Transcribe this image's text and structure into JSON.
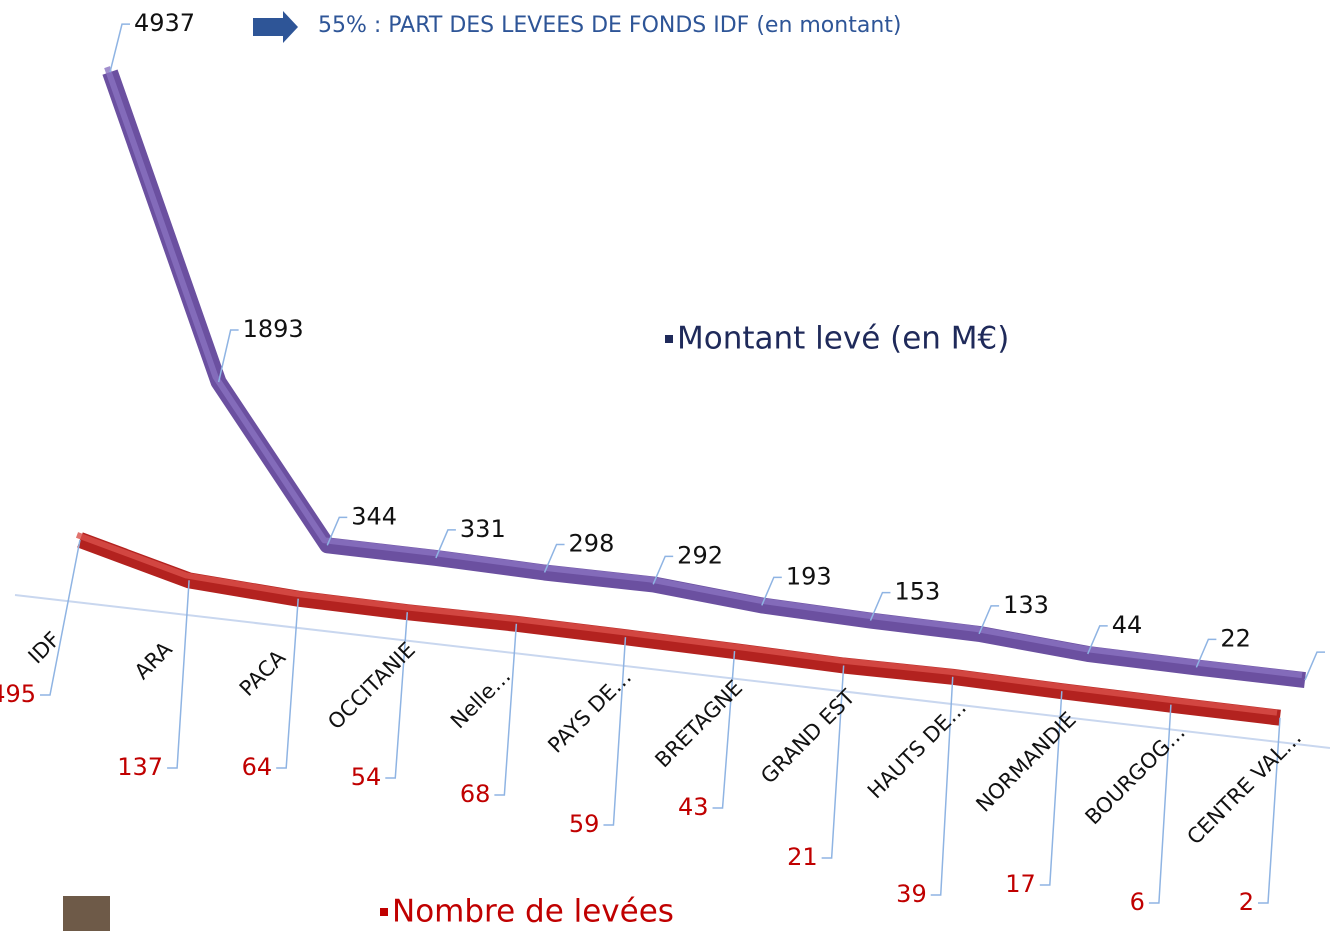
{
  "chart_data": {
    "type": "line",
    "annotation": "55% : PART DES LEVEES DE FONDS IDF (en montant)",
    "categories": [
      "IDF",
      "ARA",
      "PACA",
      "OCCITANIE",
      "Nelle…",
      "PAYS DE…",
      "BRETAGNE",
      "GRAND EST",
      "HAUTS DE…",
      "NORMANDIE",
      "BOURGOG…",
      "CENTRE VAL…"
    ],
    "series": [
      {
        "name": "Montant levé (en M€)",
        "color": "#6b50a0",
        "values": [
          4937,
          1893,
          344,
          331,
          298,
          292,
          193,
          153,
          133,
          44,
          22,
          8
        ]
      },
      {
        "name": "Nombre de levées",
        "color": "#b3221f",
        "values": [
          495,
          137,
          64,
          54,
          68,
          59,
          43,
          21,
          39,
          17,
          6,
          2
        ]
      }
    ]
  }
}
